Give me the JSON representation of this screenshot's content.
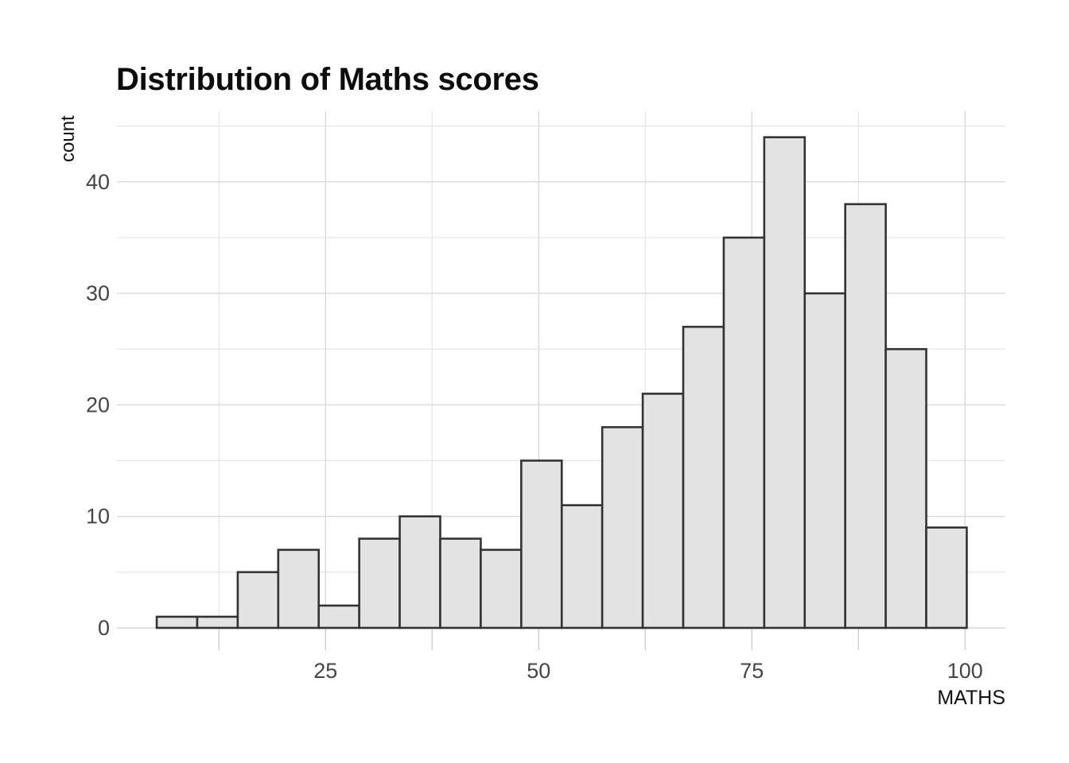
{
  "chart_data": {
    "type": "bar",
    "variant": "histogram",
    "title": "Distribution of Maths scores",
    "xlabel": "MATHS",
    "ylabel": "count",
    "bin_start": 5.2,
    "bin_width": 4.75,
    "counts": [
      1,
      1,
      5,
      7,
      2,
      8,
      10,
      8,
      7,
      15,
      11,
      18,
      21,
      27,
      35,
      44,
      30,
      38,
      25,
      9
    ],
    "n_total": 322,
    "x_ticks_major": [
      25,
      50,
      75,
      100
    ],
    "x_ticks_minor": [
      12.5,
      37.5,
      62.5,
      87.5
    ],
    "y_ticks_major": [
      0,
      10,
      20,
      30,
      40
    ],
    "y_ticks_minor": [
      5,
      15,
      25,
      35,
      45
    ],
    "xlim": [
      0.6,
      104.8
    ],
    "ylim": [
      0,
      46.3
    ],
    "grid": "major+minor",
    "legend": "none",
    "colors": {
      "bar_fill": "#e3e3e3",
      "bar_stroke": "#333333",
      "grid_major": "#d9d9d9",
      "grid_minor": "#e6e6e6",
      "axis_tick": "#cfcfcf",
      "tick_label": "#454545",
      "title": "#0d0d0d",
      "axis_title": "#111111",
      "background": "#ffffff"
    }
  }
}
